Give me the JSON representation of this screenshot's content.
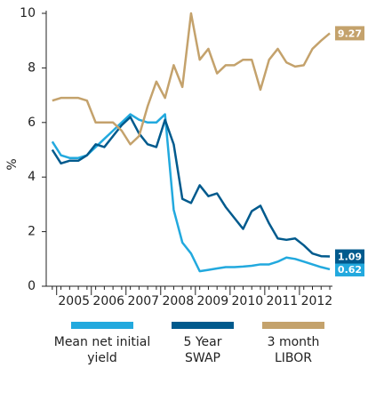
{
  "chart_data": {
    "type": "line",
    "y_label": "%",
    "ylim": [
      0,
      10
    ],
    "yticks": [
      0,
      2,
      4,
      6,
      8,
      10
    ],
    "xlim": [
      2004.7,
      2012.9
    ],
    "xticks": [
      2005,
      2006,
      2007,
      2008,
      2009,
      2010,
      2011,
      2012
    ],
    "year_labels": [
      "2005",
      "2006",
      "2007",
      "2008",
      "2009",
      "2010",
      "2011",
      "2012"
    ],
    "x": [
      2004.875,
      2005.125,
      2005.375,
      2005.625,
      2005.875,
      2006.125,
      2006.375,
      2006.625,
      2006.875,
      2007.125,
      2007.375,
      2007.625,
      2007.875,
      2008.125,
      2008.375,
      2008.625,
      2008.875,
      2009.125,
      2009.375,
      2009.625,
      2009.875,
      2010.125,
      2010.375,
      2010.625,
      2010.875,
      2011.125,
      2011.375,
      2011.625,
      2011.875,
      2012.125,
      2012.375,
      2012.625,
      2012.875
    ],
    "series": [
      {
        "name": "Mean net initial yield",
        "color": "#22a9de",
        "values": [
          5.3,
          4.8,
          4.7,
          4.7,
          4.8,
          5.1,
          5.4,
          5.7,
          6.0,
          6.3,
          6.1,
          6.0,
          6.0,
          6.3,
          2.8,
          1.6,
          1.2,
          0.55,
          0.6,
          0.65,
          0.7,
          0.7,
          0.72,
          0.75,
          0.8,
          0.8,
          0.9,
          1.05,
          1.0,
          0.9,
          0.8,
          0.7,
          0.62
        ],
        "value_labels": [
          null,
          null,
          null,
          null,
          null,
          null,
          null,
          null,
          null,
          null,
          null,
          null,
          null,
          null,
          null,
          null,
          null,
          null,
          null,
          null,
          null,
          null,
          null,
          null,
          null,
          null,
          null,
          null,
          null,
          null,
          null,
          null,
          "0.62"
        ]
      },
      {
        "name": "5 Year SWAP",
        "color": "#005a8d",
        "values": [
          5.0,
          4.5,
          4.6,
          4.6,
          4.8,
          5.2,
          5.1,
          5.5,
          5.9,
          6.2,
          5.6,
          5.2,
          5.1,
          6.1,
          5.2,
          3.2,
          3.05,
          3.7,
          3.3,
          3.4,
          2.9,
          2.5,
          2.1,
          2.75,
          2.95,
          2.3,
          1.75,
          1.7,
          1.75,
          1.5,
          1.2,
          1.1,
          1.09
        ],
        "value_labels": [
          null,
          null,
          null,
          null,
          null,
          null,
          null,
          null,
          null,
          null,
          null,
          null,
          null,
          null,
          null,
          null,
          null,
          null,
          null,
          null,
          null,
          null,
          null,
          null,
          null,
          null,
          null,
          null,
          null,
          null,
          null,
          null,
          "1.09"
        ]
      },
      {
        "name": "3 month LIBOR",
        "color": "#c4a26c",
        "values": [
          6.8,
          6.9,
          6.9,
          6.9,
          6.8,
          6.0,
          6.0,
          6.0,
          5.7,
          5.2,
          5.5,
          6.6,
          7.5,
          6.9,
          8.1,
          7.3,
          10.0,
          8.3,
          8.7,
          7.8,
          8.1,
          8.1,
          8.3,
          8.3,
          7.2,
          8.3,
          8.7,
          8.2,
          8.05,
          8.1,
          8.7,
          9.0,
          9.27
        ],
        "value_labels": [
          null,
          null,
          null,
          null,
          null,
          null,
          null,
          null,
          null,
          null,
          null,
          null,
          null,
          null,
          null,
          null,
          null,
          null,
          null,
          null,
          null,
          null,
          null,
          null,
          null,
          null,
          null,
          null,
          null,
          null,
          null,
          null,
          "9.27"
        ]
      }
    ]
  }
}
